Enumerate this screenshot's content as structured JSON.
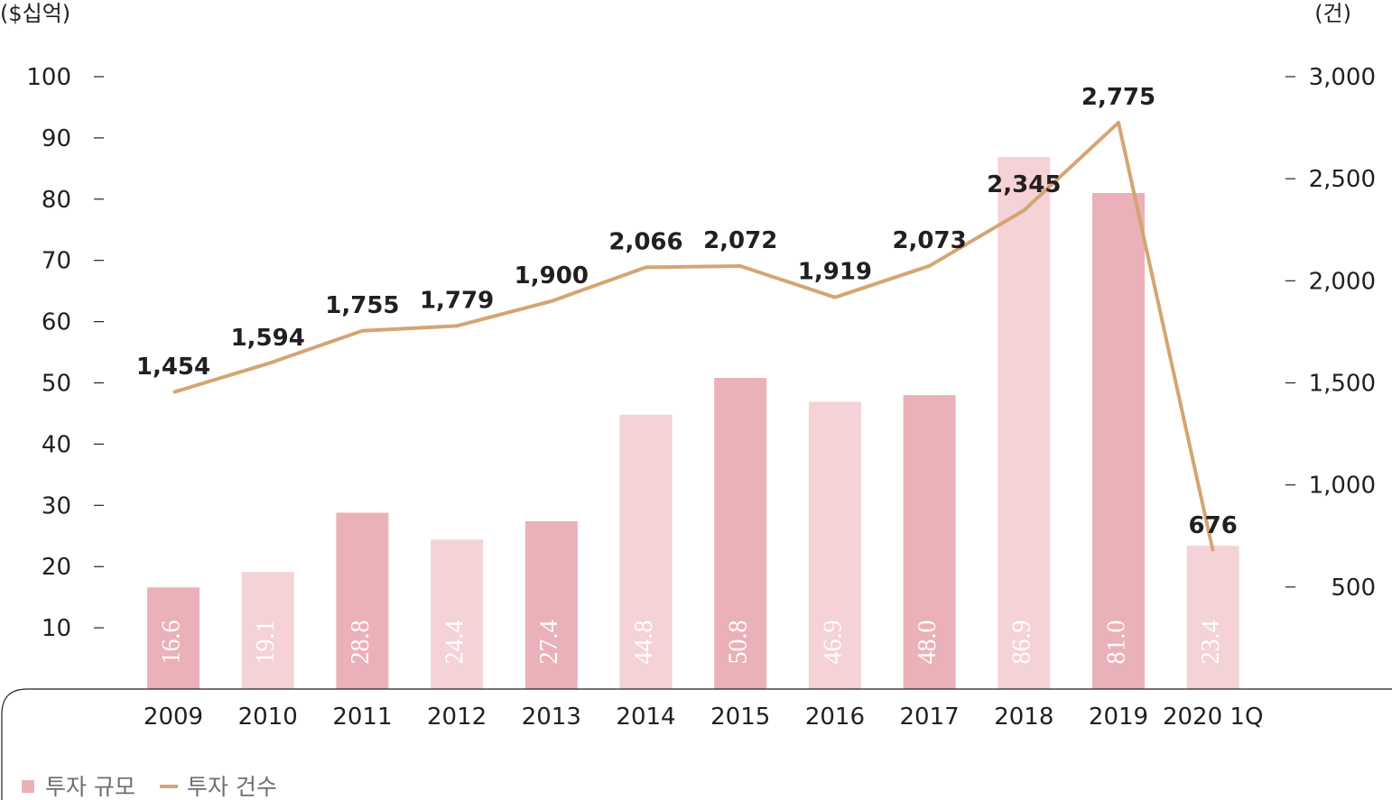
{
  "chart_data": {
    "type": "bar",
    "categories": [
      "2009",
      "2010",
      "2011",
      "2012",
      "2013",
      "2014",
      "2015",
      "2016",
      "2017",
      "2018",
      "2019",
      "2020 1Q"
    ],
    "series": [
      {
        "name": "투자 규모",
        "type": "bar",
        "axis": "left",
        "values": [
          16.6,
          19.1,
          28.8,
          24.4,
          27.4,
          44.8,
          50.8,
          46.9,
          48.0,
          86.9,
          81.0,
          23.4
        ],
        "value_labels": [
          "16.6",
          "19.1",
          "28.8",
          "24.4",
          "27.4",
          "44.8",
          "50.8",
          "46.9",
          "48.0",
          "86.9",
          "81.0",
          "23.4"
        ],
        "colors": [
          "#ebb1b8",
          "#f4d2d6",
          "#ebb1b8",
          "#f4d2d6",
          "#ebb1b8",
          "#f4d2d6",
          "#ebb1b8",
          "#f4d2d6",
          "#ebb1b8",
          "#f4d2d6",
          "#ebb1b8",
          "#f4d2d6"
        ]
      },
      {
        "name": "투자 건수",
        "type": "line",
        "axis": "right",
        "values": [
          1454,
          1594,
          1755,
          1779,
          1900,
          2066,
          2072,
          1919,
          2073,
          2345,
          2775,
          676
        ],
        "value_labels": [
          "1,454",
          "1,594",
          "1,755",
          "1,779",
          "1,900",
          "2,066",
          "2,072",
          "1,919",
          "2,073",
          "2,345",
          "2,775",
          "676"
        ],
        "color": "#d4a574"
      }
    ],
    "left_axis": {
      "unit": "($십억)",
      "ticks": [
        "10",
        "20",
        "30",
        "40",
        "50",
        "60",
        "70",
        "80",
        "90",
        "100"
      ],
      "tick_values": [
        10,
        20,
        30,
        40,
        50,
        60,
        70,
        80,
        90,
        100
      ],
      "range": [
        0,
        100
      ]
    },
    "right_axis": {
      "unit": "(건)",
      "ticks": [
        "500",
        "1,000",
        "1,500",
        "2,000",
        "2,500",
        "3,000"
      ],
      "tick_values": [
        500,
        1000,
        1500,
        2000,
        2500,
        3000
      ],
      "range": [
        0,
        3000
      ]
    },
    "legend": {
      "placement": "bottom-left",
      "items": [
        {
          "label": "투자 규모",
          "color": "#ebb1b8",
          "marker": "square"
        },
        {
          "label": "투자 건수",
          "color": "#d4a574",
          "marker": "line"
        }
      ]
    },
    "grid": false
  }
}
